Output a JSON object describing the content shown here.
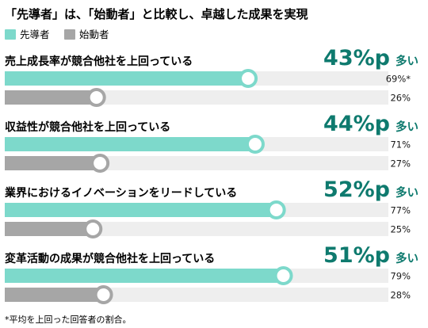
{
  "title": "「先導者」は、「始動者」と比較し、卓越した成果を実現",
  "legend": [
    {
      "label": "先導者",
      "color": "#7dd9cb"
    },
    {
      "label": "始動者",
      "color": "#a6a6a6"
    }
  ],
  "footnote": "*平均を上回った回答者の割合。",
  "colors": {
    "leader_bar": "#7dd9cb",
    "starter_bar": "#a6a6a6",
    "track": "#eeeeee",
    "accent_text": "#0e7a6e"
  },
  "chart_data": {
    "type": "bar",
    "title": "「先導者」は、「始動者」と比較し、卓越した成果を実現",
    "categories": [
      "売上成長率が競合他社を上回っている",
      "収益性が競合他社を上回っている",
      "業界におけるイノベーションをリードしている",
      "変革活動の成果が競合他社を上回っている"
    ],
    "series": [
      {
        "name": "先導者",
        "values": [
          69,
          71,
          77,
          79
        ],
        "labels": [
          "69%*",
          "71%",
          "77%",
          "79%"
        ]
      },
      {
        "name": "始動者",
        "values": [
          26,
          27,
          25,
          28
        ],
        "labels": [
          "26%",
          "27%",
          "25%",
          "28%"
        ]
      }
    ],
    "differences": [
      {
        "value": "43%p",
        "suffix": "多い"
      },
      {
        "value": "44%p",
        "suffix": "多い"
      },
      {
        "value": "52%p",
        "suffix": "多い"
      },
      {
        "value": "51%p",
        "suffix": "多い"
      }
    ],
    "ylim": [
      0,
      100
    ],
    "orientation": "horizontal",
    "grid": false
  }
}
